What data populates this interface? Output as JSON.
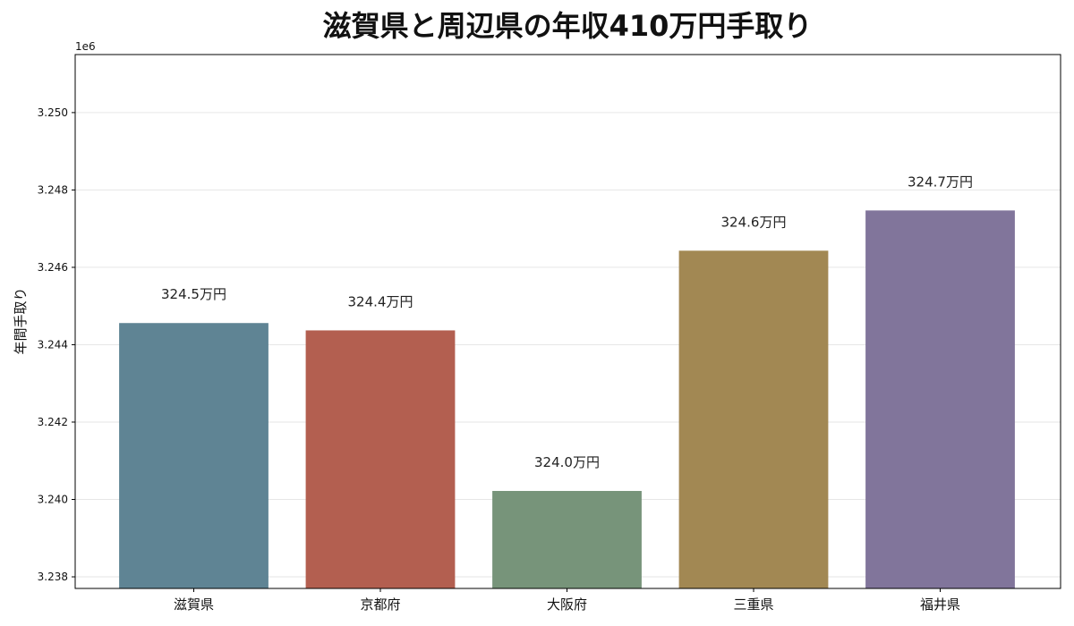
{
  "chart_data": {
    "type": "bar",
    "title": "滋賀県と周辺県の年収410万円手取り",
    "xlabel": "",
    "ylabel": "年間手取り",
    "y_offset_label": "1e6",
    "categories": [
      "滋賀県",
      "京都府",
      "大阪府",
      "三重県",
      "福井県"
    ],
    "values": [
      3244560,
      3244370,
      3240220,
      3246430,
      3247470
    ],
    "data_labels": [
      "324.5万円",
      "324.4万円",
      "324.0万円",
      "324.6万円",
      "324.7万円"
    ],
    "colors": [
      "#5f8494",
      "#b35f50",
      "#77947a",
      "#a28853",
      "#81759b"
    ],
    "ylim": [
      3237700,
      3251500
    ],
    "yticks": [
      3238000,
      3240000,
      3242000,
      3244000,
      3246000,
      3248000,
      3250000
    ],
    "ytick_labels": [
      "3.238",
      "3.240",
      "3.242",
      "3.244",
      "3.246",
      "3.248",
      "3.250"
    ],
    "grid": true,
    "legend": "none"
  }
}
